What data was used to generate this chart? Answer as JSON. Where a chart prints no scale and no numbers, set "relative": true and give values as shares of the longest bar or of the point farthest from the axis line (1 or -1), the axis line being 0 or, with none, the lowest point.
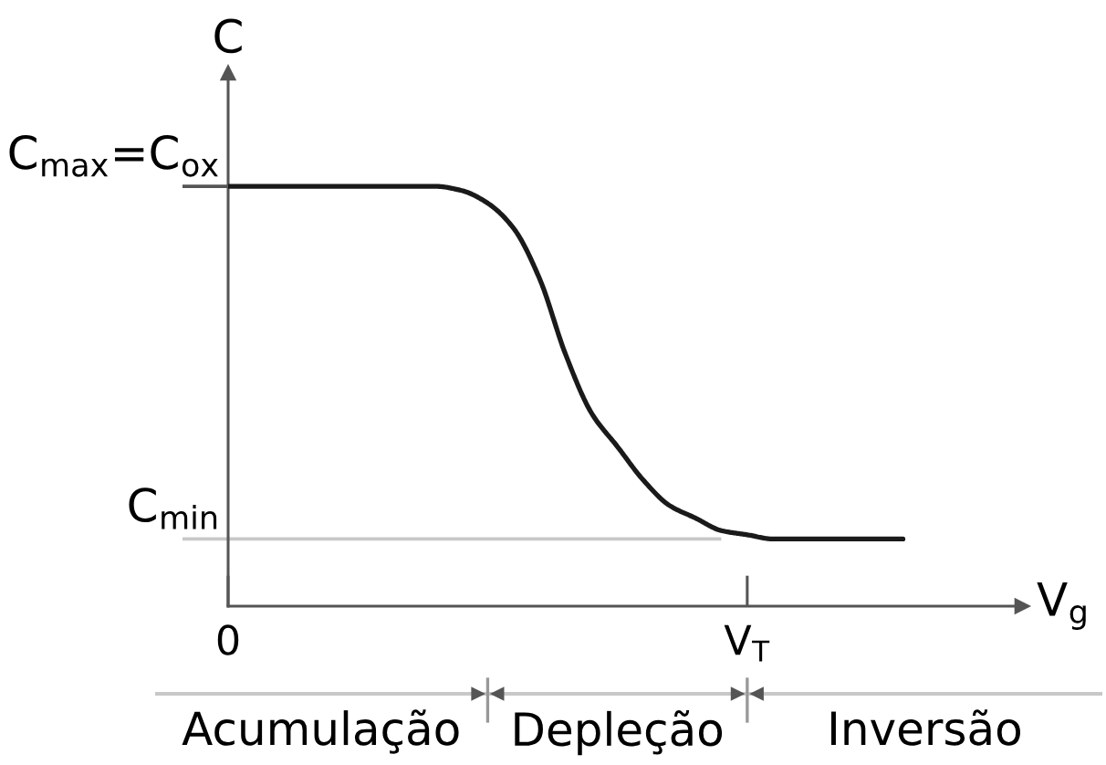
{
  "chart_data": {
    "type": "line",
    "relative": true,
    "xlabel": "V$_{g}$",
    "ylabel": "C",
    "categories": [
      "0",
      null,
      null,
      null,
      null,
      null,
      null,
      null,
      null,
      null,
      null,
      null,
      null,
      null,
      null,
      null,
      null,
      null,
      null,
      null,
      "V$_{T}$",
      null,
      null,
      null,
      null,
      null,
      null
    ],
    "series": [
      {
        "color": "#1a1a1a",
        "values": [
          1,
          1,
          1,
          1,
          1,
          1,
          1,
          1,
          1,
          0.99,
          0.96,
          0.9,
          0.78,
          0.6,
          0.46,
          0.38,
          0.3,
          0.24,
          0.21,
          0.18,
          0.17,
          0.16,
          0.16,
          0.16,
          0.16,
          0.16,
          0.16
        ]
      }
    ],
    "ref_lines": [
      {
        "axis": "y",
        "value": 1,
        "label": "C$_{max}$=C$_{ox}$",
        "color": "#555555"
      },
      {
        "axis": "y",
        "value": 0.16,
        "label": "C$_{min}$",
        "color": "#c8c8c8"
      }
    ],
    "annotations": [
      "Acumulação",
      "Depleção",
      "Inversão"
    ]
  }
}
